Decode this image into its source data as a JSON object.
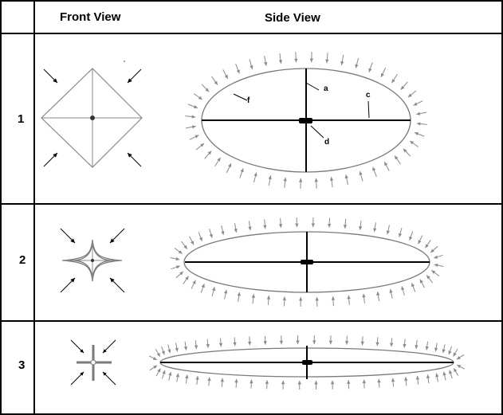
{
  "headers": {
    "front": "Front View",
    "side": "Side View"
  },
  "rows": [
    {
      "label": "1"
    },
    {
      "label": "2"
    },
    {
      "label": "3"
    }
  ],
  "part_labels": {
    "a": "a",
    "c": "c",
    "d": "d",
    "f": "f"
  },
  "colors": {
    "outline": "#000000",
    "shape": "#7a7a7a",
    "arrow": "#8a8a8a"
  }
}
